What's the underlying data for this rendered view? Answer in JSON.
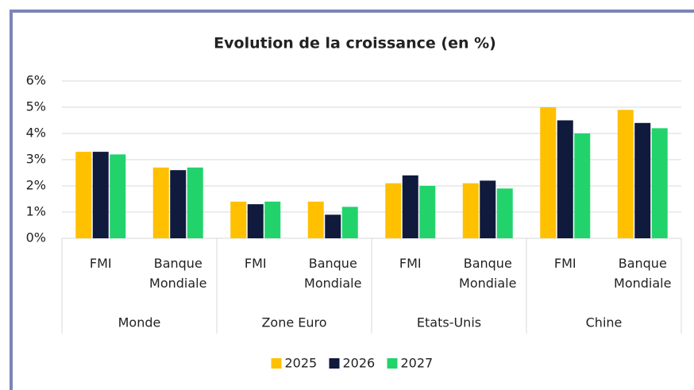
{
  "chart_data": {
    "type": "bar",
    "title": "Evolution de la croissance (en %)",
    "groups": [
      {
        "name": "Monde",
        "categories": [
          "FMI",
          "Banque Mondiale"
        ]
      },
      {
        "name": "Zone Euro",
        "categories": [
          "FMI",
          "Banque Mondiale"
        ]
      },
      {
        "name": "Etats-Unis",
        "categories": [
          "FMI",
          "Banque Mondiale"
        ]
      },
      {
        "name": "Chine",
        "categories": [
          "FMI",
          "Banque Mondiale"
        ]
      }
    ],
    "series": [
      {
        "name": "2025",
        "color": "#ffc000",
        "values": [
          3.3,
          2.7,
          1.4,
          1.4,
          2.1,
          2.1,
          5.0,
          4.9
        ]
      },
      {
        "name": "2026",
        "color": "#0f1a3c",
        "values": [
          3.3,
          2.6,
          1.3,
          0.9,
          2.4,
          2.2,
          4.5,
          4.4
        ]
      },
      {
        "name": "2027",
        "color": "#22d36b",
        "values": [
          3.2,
          2.7,
          1.4,
          1.2,
          2.0,
          1.9,
          4.0,
          4.2
        ]
      }
    ],
    "ylim": [
      0,
      6
    ],
    "yticks": [
      {
        "value": 0,
        "label": "0%"
      },
      {
        "value": 1,
        "label": "1%"
      },
      {
        "value": 2,
        "label": "2%"
      },
      {
        "value": 3,
        "label": "3%"
      },
      {
        "value": 4,
        "label": "4%"
      },
      {
        "value": 5,
        "label": "5%"
      },
      {
        "value": 6,
        "label": "6%"
      }
    ],
    "grid": true,
    "legend": "bottom"
  }
}
